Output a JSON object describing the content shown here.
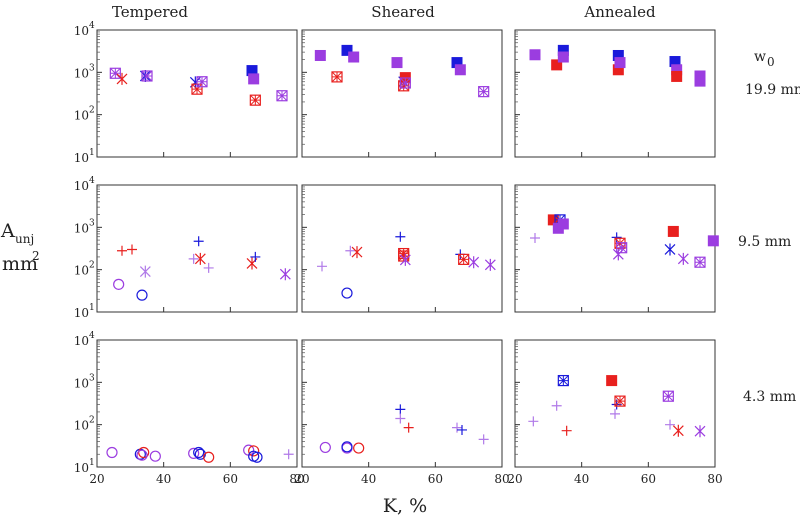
{
  "chart_data": {
    "type": "scatter",
    "columns": [
      "Tempered",
      "Sheared",
      "Annealed"
    ],
    "ylabel": {
      "main": "A",
      "sub": "unj",
      "unit": "mm",
      "unit_sup": "2"
    },
    "xlabel": "K, %",
    "w0_label": {
      "main": "w",
      "sub": "0"
    },
    "rows": [
      "19.9 mm",
      "9.5 mm",
      "4.3 mm"
    ],
    "xlim": [
      20,
      80
    ],
    "xticks": [
      "20",
      "40",
      "60",
      "80"
    ],
    "xtick_values": [
      20,
      40,
      60,
      80
    ],
    "ylim": [
      10,
      10000
    ],
    "yscale": "log",
    "yticks": [
      {
        "base": "10",
        "exp": "1"
      },
      {
        "base": "10",
        "exp": "2"
      },
      {
        "base": "10",
        "exp": "3"
      },
      {
        "base": "10",
        "exp": "4"
      }
    ],
    "ytick_values": [
      10,
      100,
      1000,
      10000
    ],
    "colors": {
      "blue": "#1a1adb",
      "red": "#e8201e",
      "purple": "#9b3de0",
      "purple_light": "#b07ae8"
    },
    "panels": [
      [
        {
          "points": [
            [
              25.5,
              950,
              "boxx",
              "purple"
            ],
            [
              27.5,
              700,
              "star",
              "red"
            ],
            [
              34.5,
              820,
              "star",
              "blue"
            ],
            [
              35,
              820,
              "boxx",
              "purple"
            ],
            [
              49.5,
              580,
              "star",
              "blue"
            ],
            [
              50,
              400,
              "boxx",
              "red"
            ],
            [
              51.5,
              600,
              "boxx",
              "purple"
            ],
            [
              66.5,
              1100,
              "sq",
              "blue"
            ],
            [
              67,
              700,
              "sq",
              "purple"
            ],
            [
              67.5,
              220,
              "boxx",
              "red"
            ],
            [
              75.5,
              280,
              "boxx",
              "purple"
            ]
          ]
        },
        {
          "points": [
            [
              25.5,
              2500,
              "sq",
              "purple"
            ],
            [
              30.5,
              780,
              "boxx",
              "red"
            ],
            [
              33.5,
              3300,
              "sq",
              "blue"
            ],
            [
              35.5,
              2300,
              "sq",
              "purple"
            ],
            [
              48.5,
              1700,
              "sq",
              "purple"
            ],
            [
              50.5,
              600,
              "star",
              "blue"
            ],
            [
              51,
              750,
              "sq",
              "red"
            ],
            [
              50.5,
              480,
              "boxx",
              "red"
            ],
            [
              51,
              560,
              "boxx",
              "purple"
            ],
            [
              66.5,
              1700,
              "sq",
              "blue"
            ],
            [
              67.5,
              1150,
              "sq",
              "purple"
            ],
            [
              74.5,
              350,
              "boxx",
              "purple"
            ]
          ]
        },
        {
          "points": [
            [
              26,
              2600,
              "sq",
              "purple"
            ],
            [
              32.5,
              1500,
              "sq",
              "red"
            ],
            [
              34.5,
              3300,
              "sq",
              "blue"
            ],
            [
              34.5,
              2300,
              "sq",
              "purple"
            ],
            [
              51,
              2500,
              "sq",
              "blue"
            ],
            [
              51,
              1150,
              "sq",
              "red"
            ],
            [
              51.5,
              1700,
              "sq",
              "purple"
            ],
            [
              68,
              1800,
              "sq",
              "blue"
            ],
            [
              68.5,
              1150,
              "sq",
              "purple"
            ],
            [
              68.5,
              800,
              "sq",
              "red"
            ],
            [
              75.5,
              820,
              "sq",
              "purple"
            ],
            [
              75.5,
              620,
              "sq",
              "purple"
            ]
          ]
        }
      ],
      [
        {
          "points": [
            [
              26.5,
              45,
              "circ",
              "purple"
            ],
            [
              27.5,
              280,
              "plus",
              "red"
            ],
            [
              30.5,
              300,
              "plus",
              "red"
            ],
            [
              33.5,
              25,
              "circ",
              "blue"
            ],
            [
              34.5,
              90,
              "star",
              "purple_light"
            ],
            [
              49,
              180,
              "plus",
              "purple_light"
            ],
            [
              50.5,
              470,
              "plus",
              "blue"
            ],
            [
              51,
              180,
              "star",
              "red"
            ],
            [
              53.5,
              110,
              "plus",
              "purple_light"
            ],
            [
              66.5,
              140,
              "star",
              "red"
            ],
            [
              67.5,
              200,
              "plus",
              "blue"
            ],
            [
              76.5,
              78,
              "star",
              "purple"
            ]
          ]
        },
        {
          "points": [
            [
              26,
              120,
              "plus",
              "purple_light"
            ],
            [
              33.5,
              28,
              "circ",
              "blue"
            ],
            [
              34.5,
              280,
              "plus",
              "purple_light"
            ],
            [
              36.5,
              260,
              "star",
              "red"
            ],
            [
              49.5,
              600,
              "plus",
              "blue"
            ],
            [
              50.5,
              210,
              "boxx",
              "red"
            ],
            [
              50.5,
              240,
              "boxx",
              "red"
            ],
            [
              51,
              170,
              "star",
              "purple"
            ],
            [
              67.5,
              230,
              "plus",
              "blue"
            ],
            [
              68.5,
              175,
              "boxx",
              "red"
            ],
            [
              71.5,
              150,
              "star",
              "purple"
            ],
            [
              76.5,
              130,
              "star",
              "purple"
            ]
          ]
        },
        {
          "points": [
            [
              26,
              560,
              "plus",
              "purple_light"
            ],
            [
              31.5,
              1500,
              "sq",
              "red"
            ],
            [
              33.5,
              1500,
              "boxx",
              "blue"
            ],
            [
              33,
              950,
              "sq",
              "purple"
            ],
            [
              34.5,
              1200,
              "sq",
              "purple"
            ],
            [
              50.5,
              580,
              "plus",
              "blue"
            ],
            [
              51,
              230,
              "star",
              "purple"
            ],
            [
              51.5,
              420,
              "boxx",
              "red"
            ],
            [
              52,
              330,
              "boxx",
              "purple"
            ],
            [
              66.5,
              300,
              "star",
              "blue"
            ],
            [
              67.5,
              800,
              "sq",
              "red"
            ],
            [
              70.5,
              180,
              "star",
              "purple"
            ],
            [
              75.5,
              150,
              "boxx",
              "purple"
            ],
            [
              79.5,
              480,
              "sq",
              "purple"
            ]
          ]
        }
      ],
      [
        {
          "points": [
            [
              24.5,
              22,
              "circ",
              "purple"
            ],
            [
              33,
              20,
              "circ",
              "blue"
            ],
            [
              34,
              22,
              "circ",
              "red"
            ],
            [
              33.5,
              19,
              "circ",
              "purple"
            ],
            [
              37.5,
              18,
              "circ",
              "purple"
            ],
            [
              49,
              21,
              "circ",
              "purple"
            ],
            [
              50.5,
              22,
              "circ",
              "blue"
            ],
            [
              51,
              20,
              "circ",
              "blue"
            ],
            [
              53.5,
              17,
              "circ",
              "red"
            ],
            [
              65.5,
              25,
              "circ",
              "purple"
            ],
            [
              67,
              24,
              "circ",
              "red"
            ],
            [
              67,
              18,
              "circ",
              "blue"
            ],
            [
              68,
              17,
              "circ",
              "blue"
            ],
            [
              77.5,
              20,
              "plus",
              "purple_light"
            ]
          ]
        },
        {
          "points": [
            [
              27,
              29,
              "circ",
              "purple"
            ],
            [
              33.5,
              28,
              "circ",
              "purple"
            ],
            [
              33.5,
              30,
              "circ",
              "blue"
            ],
            [
              37,
              28,
              "circ",
              "red"
            ],
            [
              49.5,
              230,
              "plus",
              "blue"
            ],
            [
              49.5,
              140,
              "plus",
              "purple_light"
            ],
            [
              52,
              85,
              "plus",
              "red"
            ],
            [
              66.5,
              85,
              "plus",
              "purple_light"
            ],
            [
              68,
              75,
              "plus",
              "blue"
            ],
            [
              74.5,
              45,
              "plus",
              "purple_light"
            ]
          ]
        },
        {
          "points": [
            [
              25.5,
              120,
              "plus",
              "purple_light"
            ],
            [
              32.5,
              280,
              "plus",
              "purple_light"
            ],
            [
              34.5,
              1100,
              "boxx",
              "blue"
            ],
            [
              35.5,
              72,
              "plus",
              "red"
            ],
            [
              49,
              1100,
              "sq",
              "red"
            ],
            [
              50.5,
              300,
              "plus",
              "blue"
            ],
            [
              51.5,
              360,
              "boxx",
              "red"
            ],
            [
              50,
              180,
              "plus",
              "purple_light"
            ],
            [
              66,
              470,
              "boxx",
              "purple"
            ],
            [
              66.5,
              100,
              "plus",
              "purple_light"
            ],
            [
              69,
              72,
              "star",
              "red"
            ],
            [
              75.5,
              70,
              "star",
              "purple"
            ]
          ]
        }
      ]
    ]
  }
}
